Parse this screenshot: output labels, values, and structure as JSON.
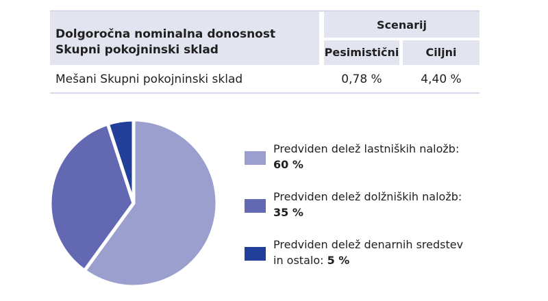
{
  "table": {
    "header_title_line1": "Dolgoročna nominalna donosnost",
    "header_title_line2": "Skupni pokojninski sklad",
    "scenarij": "Scenarij",
    "col_pesimisticni": "Pesimistični",
    "col_ciljni": "Ciljni",
    "row_label": "Mešani Skupni pokojninski sklad",
    "row_pesimisticni": "0,78 %",
    "row_ciljni": "4,40 %"
  },
  "legend": [
    {
      "text": "Predviden delež lastniških naložb:",
      "text2": "",
      "value": "60 %"
    },
    {
      "text": "Predviden delež dolžniških naložb:",
      "text2": "",
      "value": "35 %"
    },
    {
      "text": "Predviden delež denarnih sredstev",
      "text2": "in ostalo: ",
      "value": "5 %"
    }
  ],
  "chart_data": {
    "type": "pie",
    "categories": [
      "Predviden delež lastniških naložb",
      "Predviden delež dolžniških naložb",
      "Predviden delež denarnih sredstev in ostalo"
    ],
    "values": [
      60,
      35,
      5
    ],
    "colors": [
      "#9a9fce",
      "#6268b2",
      "#22409a"
    ]
  }
}
